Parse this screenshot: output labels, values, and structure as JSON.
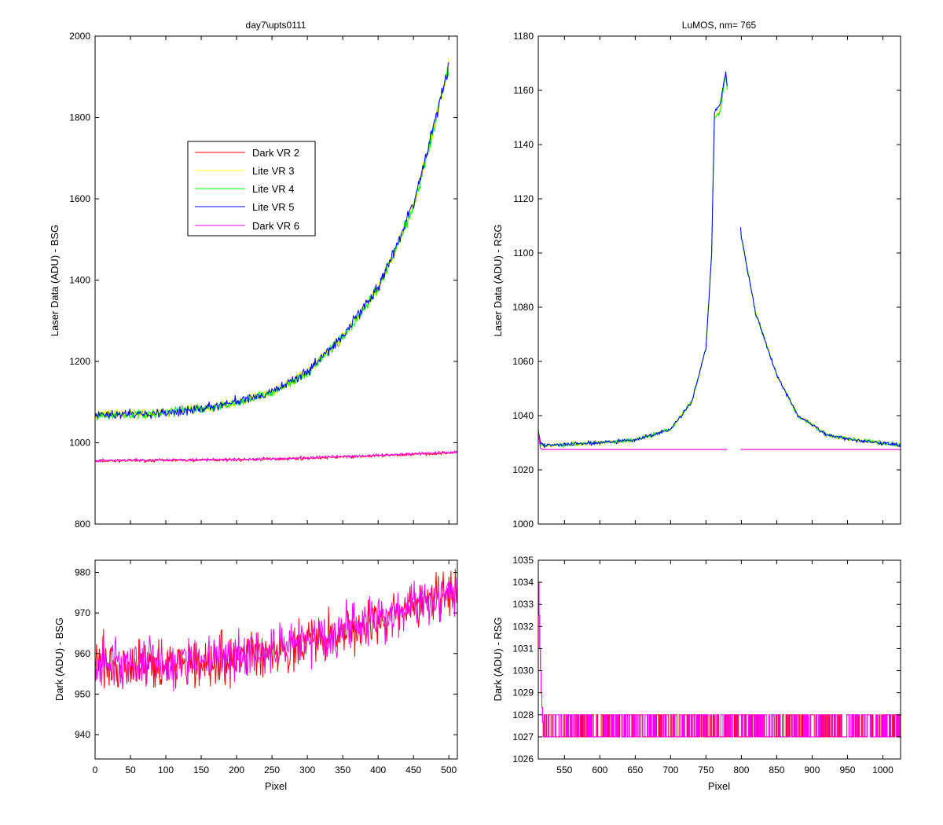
{
  "figure": {
    "background": "#ffffff"
  },
  "legend": {
    "placement": "upper-left of top-left panel",
    "entries": [
      {
        "label": "Dark VR 2",
        "color": "#ff0000"
      },
      {
        "label": "Lite VR 3",
        "color": "#ffff00"
      },
      {
        "label": "Lite VR 4",
        "color": "#00ff00"
      },
      {
        "label": "Lite VR 5",
        "color": "#0000ff"
      },
      {
        "label": "Dark VR 6",
        "color": "#ff00ff"
      }
    ]
  },
  "chart_data": [
    {
      "id": "bsg_laser",
      "type": "line",
      "title": "day7\\upts0111",
      "xlabel": "",
      "ylabel": "Laser Data (ADU) - BSG",
      "xlim": [
        0,
        512
      ],
      "ylim": [
        800,
        2000
      ],
      "xticks": [
        0,
        50,
        100,
        150,
        200,
        250,
        300,
        350,
        400,
        450,
        500
      ],
      "xtick_labels_visible": false,
      "yticks": [
        800,
        1000,
        1200,
        1400,
        1600,
        1800,
        2000
      ],
      "grid": false,
      "series": [
        {
          "name": "Dark VR 2",
          "color": "#ff0000",
          "x": [
            0,
            100,
            200,
            300,
            400,
            512
          ],
          "y": [
            955,
            957,
            958,
            962,
            968,
            976
          ]
        },
        {
          "name": "Lite VR 3",
          "color": "#ffff00",
          "x": [
            0,
            50,
            100,
            150,
            200,
            250,
            300,
            350,
            400,
            450,
            500
          ],
          "y": [
            1068,
            1072,
            1075,
            1085,
            1100,
            1125,
            1175,
            1260,
            1380,
            1580,
            1920
          ]
        },
        {
          "name": "Lite VR 4",
          "color": "#00ff00",
          "x": [
            0,
            50,
            100,
            150,
            200,
            250,
            300,
            350,
            400,
            450,
            500
          ],
          "y": [
            1065,
            1070,
            1073,
            1083,
            1098,
            1123,
            1172,
            1258,
            1378,
            1578,
            1920
          ]
        },
        {
          "name": "Lite VR 5",
          "color": "#0000ff",
          "x": [
            0,
            50,
            100,
            150,
            200,
            250,
            300,
            350,
            400,
            450,
            500
          ],
          "y": [
            1068,
            1071,
            1074,
            1084,
            1100,
            1124,
            1175,
            1262,
            1382,
            1585,
            1930
          ]
        },
        {
          "name": "Dark VR 6",
          "color": "#ff00ff",
          "x": [
            0,
            100,
            200,
            300,
            400,
            512
          ],
          "y": [
            956,
            958,
            959,
            963,
            969,
            977
          ]
        }
      ]
    },
    {
      "id": "rsg_laser",
      "type": "line",
      "title": "LuMOS, nm= 765",
      "xlabel": "",
      "ylabel": "Laser Data (ADU) - RSG",
      "xlim": [
        513,
        1025
      ],
      "ylim": [
        1000,
        1180
      ],
      "xticks": [
        550,
        600,
        650,
        700,
        750,
        800,
        850,
        900,
        950,
        1000
      ],
      "xtick_labels_visible": false,
      "yticks": [
        1000,
        1020,
        1040,
        1060,
        1080,
        1100,
        1120,
        1140,
        1160,
        1180
      ],
      "grid": false,
      "series": [
        {
          "name": "Lite VR 3",
          "color": "#ffff00",
          "x": [
            513,
            516,
            520,
            600,
            650,
            700,
            730,
            750,
            758,
            762,
            770,
            778,
            800,
            820,
            850,
            880,
            920,
            960,
            1000,
            1025
          ],
          "y": [
            1035,
            1030,
            1029,
            1030,
            1031,
            1035,
            1045,
            1065,
            1100,
            1150,
            1153,
            1166,
            1106,
            1078,
            1055,
            1040,
            1033,
            1031,
            1030,
            1029
          ]
        },
        {
          "name": "Lite VR 4",
          "color": "#00ff00",
          "x": [
            513,
            516,
            520,
            600,
            650,
            700,
            730,
            750,
            758,
            762,
            770,
            778,
            800,
            820,
            850,
            880,
            920,
            960,
            1000,
            1025
          ],
          "y": [
            1035,
            1030,
            1029,
            1030,
            1031,
            1035,
            1045,
            1065,
            1100,
            1150,
            1152,
            1166,
            1106,
            1078,
            1055,
            1040,
            1033,
            1031,
            1030,
            1029
          ]
        },
        {
          "name": "Lite VR 5",
          "color": "#0000ff",
          "x": [
            513,
            516,
            520,
            600,
            650,
            700,
            730,
            750,
            758,
            762,
            770,
            778,
            800,
            820,
            850,
            880,
            920,
            960,
            1000,
            1025
          ],
          "y": [
            1035,
            1030,
            1029,
            1030,
            1031,
            1035,
            1045,
            1065,
            1100,
            1152,
            1155,
            1167,
            1106,
            1078,
            1055,
            1040,
            1033,
            1031,
            1030,
            1029
          ]
        },
        {
          "name": "Dark VR 2",
          "color": "#ff0000",
          "x": [
            513,
            516,
            520,
            1025
          ],
          "y": [
            1034,
            1028,
            1027.5,
            1027.5
          ]
        },
        {
          "name": "Dark VR 6",
          "color": "#ff00ff",
          "x": [
            513,
            516,
            520,
            1025
          ],
          "y": [
            1034,
            1028,
            1027.5,
            1027.5
          ]
        }
      ]
    },
    {
      "id": "bsg_dark",
      "type": "line",
      "title": "",
      "xlabel": "Pixel",
      "ylabel": "Dark (ADU) - BSG",
      "xlim": [
        0,
        512
      ],
      "ylim": [
        934,
        983
      ],
      "xticks": [
        0,
        50,
        100,
        150,
        200,
        250,
        300,
        350,
        400,
        450,
        500
      ],
      "xtick_labels_visible": true,
      "yticks": [
        940,
        950,
        960,
        970,
        980
      ],
      "grid": false,
      "series": [
        {
          "name": "Dark VR 2",
          "color": "#ff0000",
          "x": [
            0,
            100,
            200,
            300,
            400,
            512
          ],
          "y": [
            957,
            957.5,
            959,
            962.5,
            968,
            975
          ],
          "noise": 5
        },
        {
          "name": "Dark VR 6",
          "color": "#ff00ff",
          "x": [
            0,
            100,
            200,
            300,
            400,
            512
          ],
          "y": [
            958,
            958,
            959.5,
            963,
            968.5,
            975.5
          ],
          "noise": 5
        }
      ]
    },
    {
      "id": "rsg_dark",
      "type": "line",
      "title": "",
      "xlabel": "Pixel",
      "ylabel": "Dark (ADU) - RSG",
      "xlim": [
        513,
        1025
      ],
      "ylim": [
        1026,
        1035
      ],
      "xticks": [
        550,
        600,
        650,
        700,
        750,
        800,
        850,
        900,
        950,
        1000
      ],
      "xtick_labels_visible": true,
      "yticks": [
        1026,
        1027,
        1028,
        1029,
        1030,
        1031,
        1032,
        1033,
        1034,
        1035
      ],
      "grid": false,
      "series": [
        {
          "name": "Dark VR 2",
          "color": "#ff0000",
          "x": [
            513,
            515,
            517,
            520,
            1025
          ],
          "y": [
            1034,
            1031,
            1029,
            1027,
            1027
          ],
          "levels": [
            1027,
            1028
          ]
        },
        {
          "name": "Dark VR 6",
          "color": "#ff00ff",
          "x": [
            513,
            515,
            517,
            520,
            1025
          ],
          "y": [
            1034,
            1031,
            1029,
            1027,
            1027
          ],
          "levels": [
            1027,
            1028
          ]
        }
      ]
    }
  ]
}
